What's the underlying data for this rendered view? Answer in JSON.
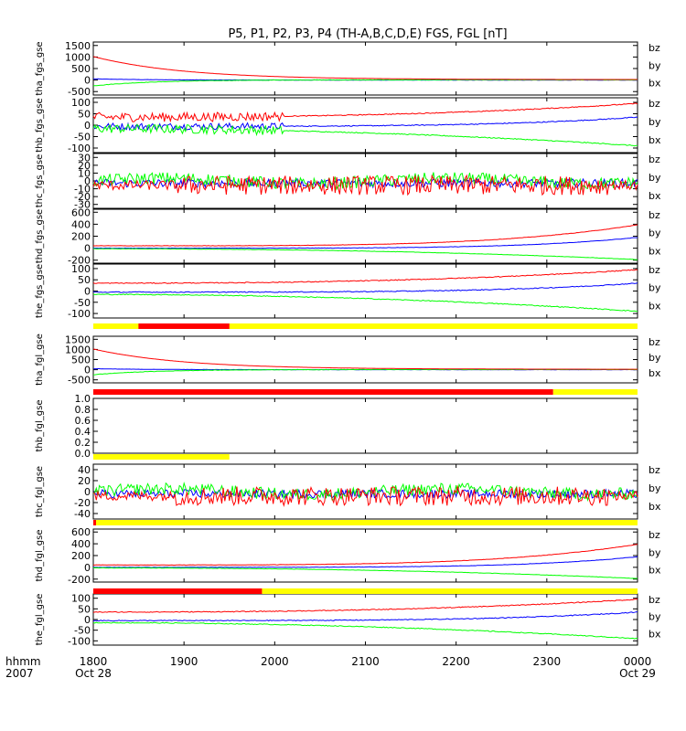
{
  "title": "P5, P1, P2, P3, P4 (TH-A,B,C,D,E) FGS, FGL [nT]",
  "x_axis": {
    "corner_top": "hhmm",
    "corner_bottom": "2007",
    "ticks": [
      "1800",
      "1900",
      "2000",
      "2100",
      "2200",
      "2300",
      "0000"
    ],
    "date_labels": {
      "start": "Oct 28",
      "end": "Oct 29"
    },
    "range_hours": [
      18,
      24
    ]
  },
  "colors": {
    "bz": "#ff0000",
    "by": "#00ff00",
    "bx": "#0000ff",
    "bar_yellow": "#ffff00",
    "bar_red": "#ff0000",
    "bar_black": "#000000"
  },
  "chart_data": [
    {
      "type": "line",
      "ylabel": "tha_fgs_gse",
      "yticks": [
        "1500",
        "1000",
        "500",
        "0",
        "-500"
      ],
      "ylim": [
        -650,
        1650
      ],
      "legend": [
        "bz",
        "by",
        "bx"
      ]
    },
    {
      "type": "line",
      "ylabel": "thb_fgs_gse",
      "yticks": [
        "100",
        "50",
        "0",
        "-50",
        "-100"
      ],
      "ylim": [
        -120,
        120
      ],
      "legend": [
        "bz",
        "by",
        "bx"
      ]
    },
    {
      "type": "line",
      "ylabel": "thc_fgs_gse",
      "yticks": [
        "30",
        "20",
        "10",
        "0",
        "-10",
        "-20",
        "-30"
      ],
      "ylim": [
        -35,
        35
      ],
      "legend": [
        "bz",
        "by",
        "bx"
      ]
    },
    {
      "type": "line",
      "ylabel": "thd_fgs_gse",
      "yticks": [
        "600",
        "400",
        "200",
        "0",
        "-200"
      ],
      "ylim": [
        -250,
        650
      ],
      "legend": [
        "bz",
        "by",
        "bx"
      ]
    },
    {
      "type": "line",
      "ylabel": "the_fgs_gse",
      "yticks": [
        "100",
        "50",
        "0",
        "-50",
        "-100"
      ],
      "ylim": [
        -120,
        120
      ],
      "legend": [
        "bz",
        "by",
        "bx"
      ]
    },
    {
      "type": "line",
      "ylabel": "tha_fgl_gse",
      "yticks": [
        "1500",
        "1000",
        "500",
        "0",
        "-500"
      ],
      "ylim": [
        -650,
        1650
      ],
      "legend": [
        "bz",
        "by",
        "bx"
      ]
    },
    {
      "type": "line",
      "ylabel": "thb_fgl_gse",
      "yticks": [
        "1.0",
        "0.8",
        "0.6",
        "0.4",
        "0.2",
        "0.0"
      ],
      "ylim": [
        0,
        1
      ],
      "legend": []
    },
    {
      "type": "line",
      "ylabel": "thc_fgl_gse",
      "yticks": [
        "40",
        "20",
        "0",
        "-20",
        "-40"
      ],
      "ylim": [
        -50,
        50
      ],
      "legend": [
        "bz",
        "by",
        "bx"
      ]
    },
    {
      "type": "line",
      "ylabel": "thd_fgl_gse",
      "yticks": [
        "600",
        "400",
        "200",
        "0",
        "-200"
      ],
      "ylim": [
        -250,
        650
      ],
      "legend": [
        "bz",
        "by",
        "bx"
      ]
    },
    {
      "type": "line",
      "ylabel": "the_fgl_gse",
      "yticks": [
        "100",
        "50",
        "0",
        "-50",
        "-100"
      ],
      "ylim": [
        -120,
        120
      ],
      "legend": [
        "bz",
        "by",
        "bx"
      ]
    }
  ]
}
